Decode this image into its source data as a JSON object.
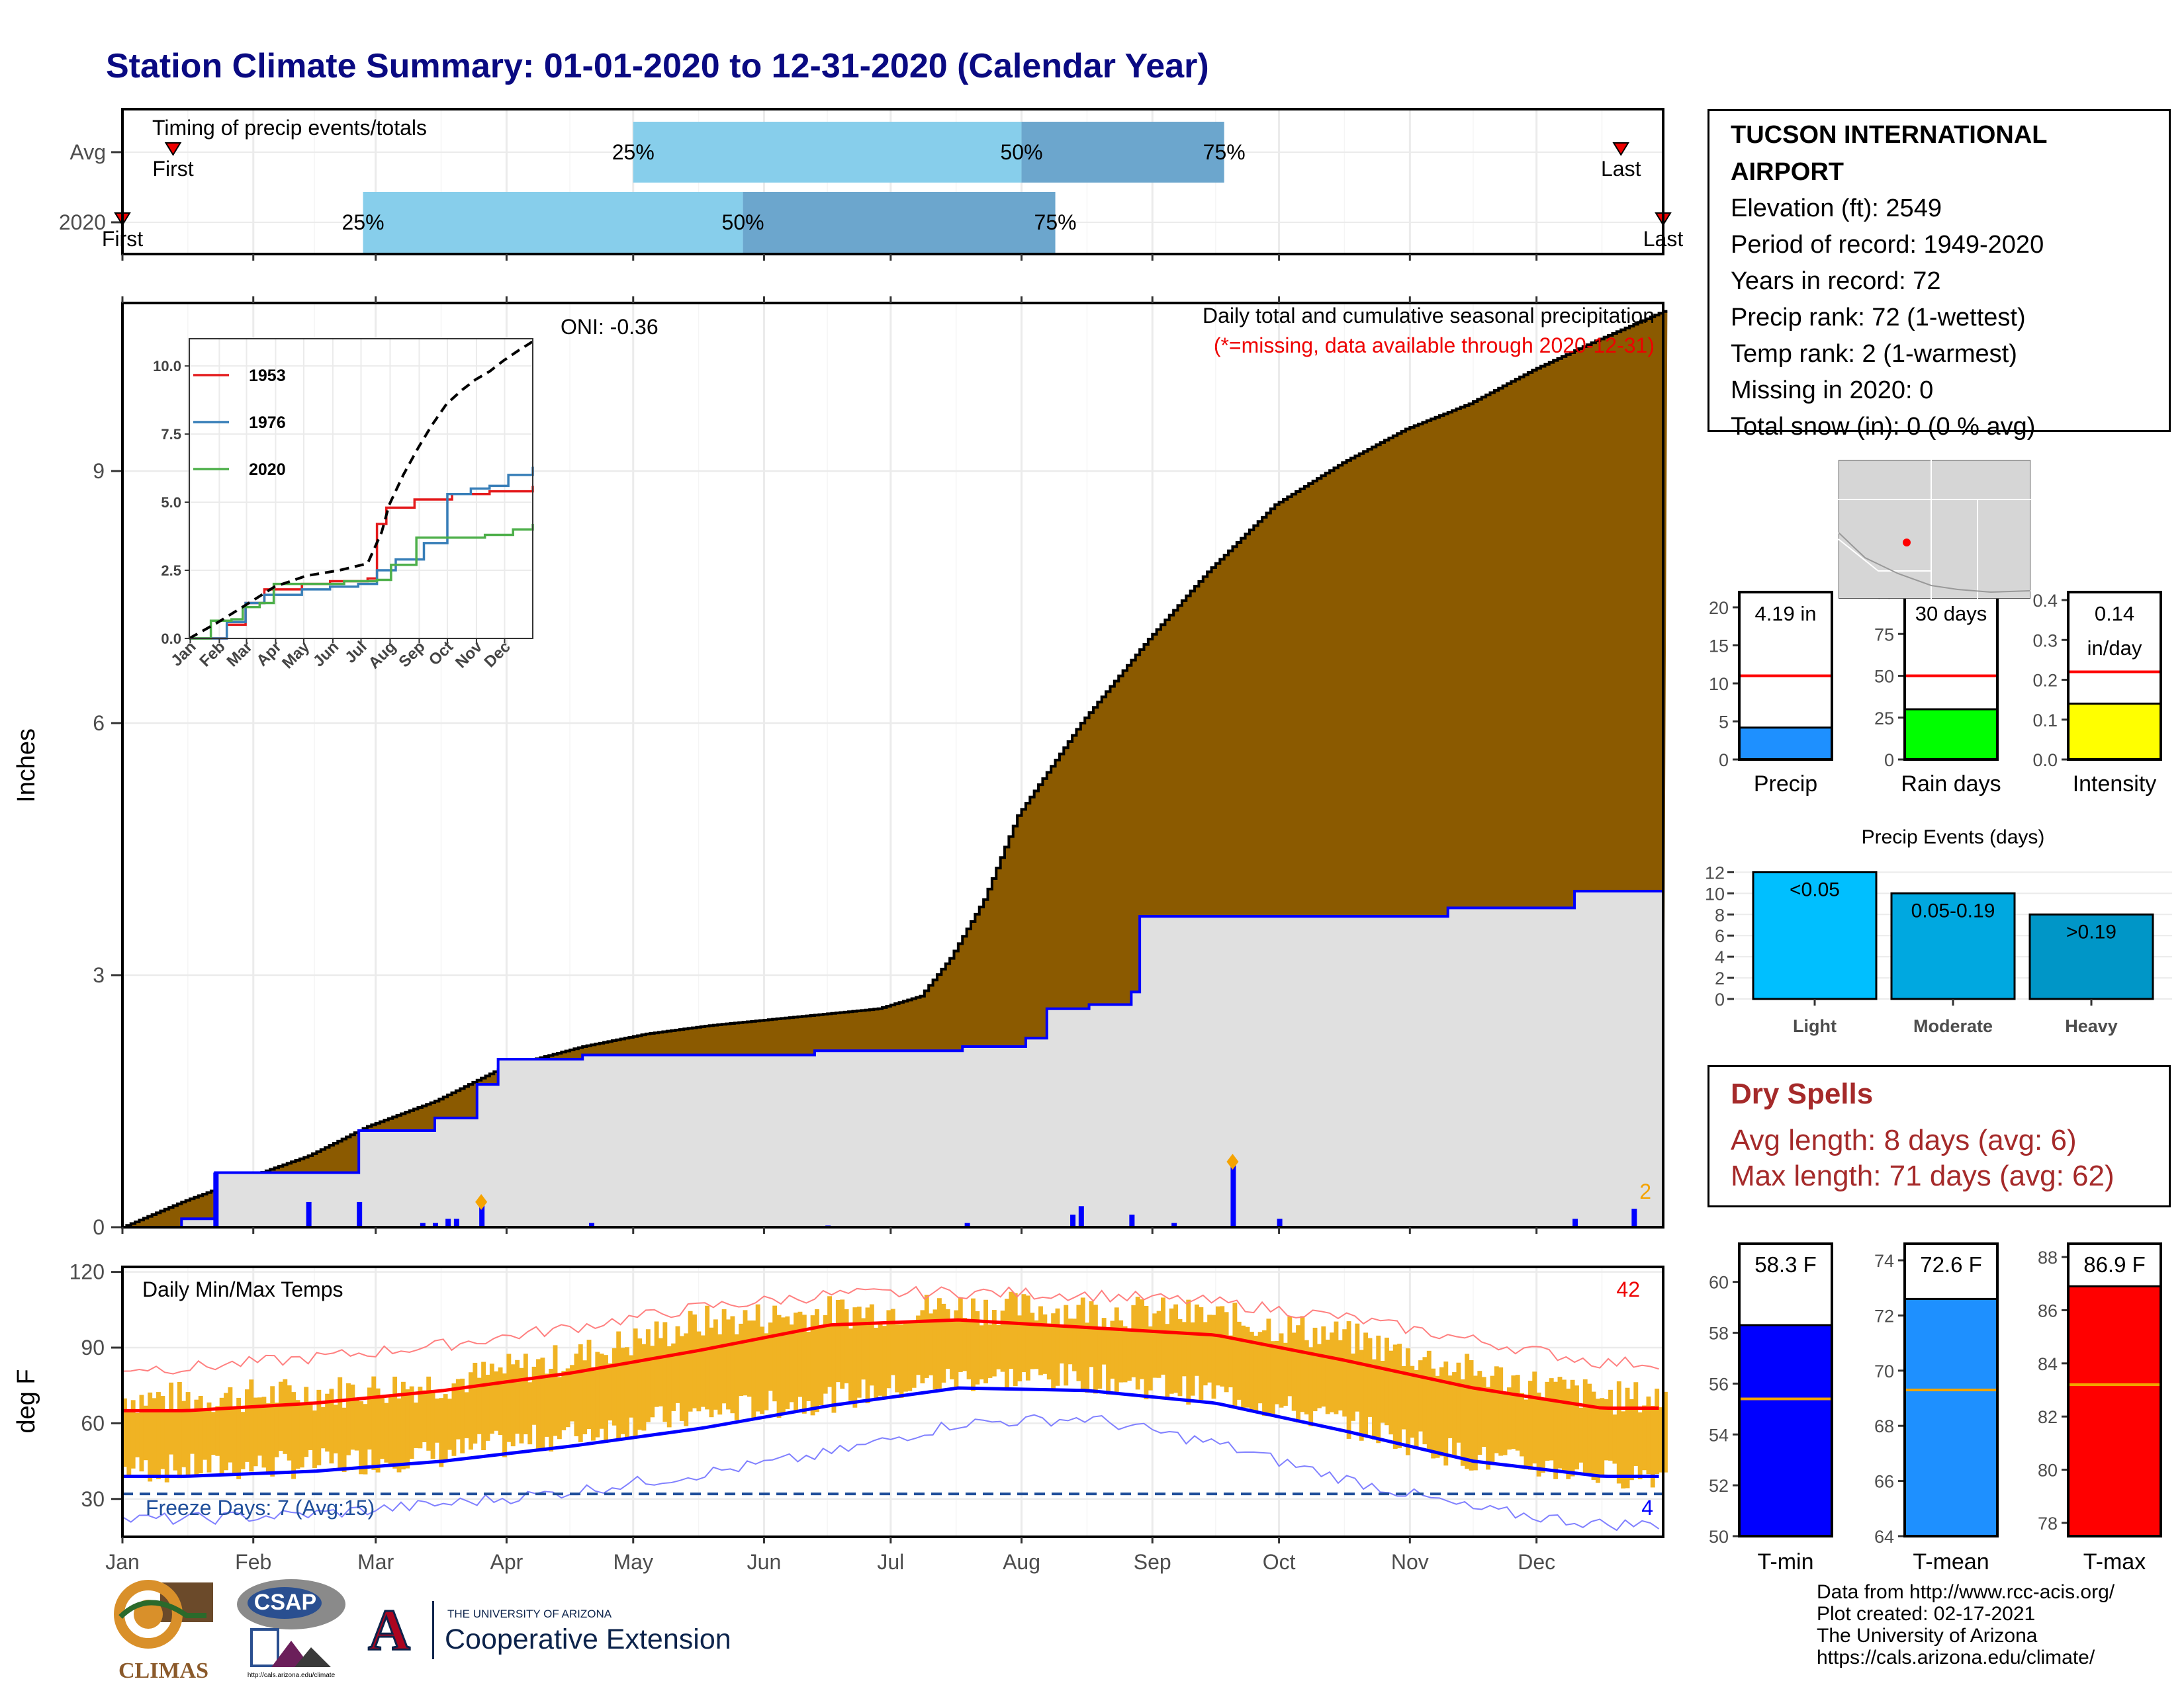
{
  "header": {
    "title": "Station Climate Summary: 01-01-2020 to 12-31-2020 (Calendar Year)"
  },
  "station": {
    "name": "TUCSON INTERNATIONAL AIRPORT",
    "lines": [
      "Elevation (ft): 2549",
      "Period of record: 1949-2020",
      "Years in record: 72",
      "Precip rank: 72 (1-wettest)",
      "Temp rank: 2 (1-warmest)",
      "Missing in 2020: 0",
      "Total snow (in): 0 (0 % avg)"
    ]
  },
  "dry_spells": {
    "title": "Dry Spells",
    "avg": "Avg length: 8 days (avg: 6)",
    "max": "Max length: 71 days (avg: 62)"
  },
  "credits": [
    "Data from http://www.rcc-acis.org/",
    "Plot created: 02-17-2021",
    "The University of Arizona",
    "https://cals.arizona.edu/climate/"
  ],
  "logos": {
    "climas": "CLIMAS",
    "csap": "CSAP",
    "csap_url": "http://cals.arizona.edu/climate",
    "ua_small": "THE UNIVERSITY OF ARIZONA",
    "ua_big": "Cooperative Extension",
    "ua_mark": "A"
  },
  "colors": {
    "precip_fill": "#8B5A00",
    "avg_fill": "#E0E0E0",
    "avg_line": "#0000FF",
    "quart_light": "#87CEEB",
    "quart_dark": "#6CA6CD",
    "temp_bar": "#F0B323",
    "tmax": "#FF0000",
    "tmin": "#0000FF",
    "freeze": "#1F4E9A"
  },
  "chart_data": [
    {
      "id": "timing",
      "type": "timing",
      "title": "Timing of precip events/totals",
      "rows": [
        {
          "label": "Avg",
          "first": "Jan 13",
          "last": "Dec 21",
          "q25": "May 1",
          "q50": "Aug 1",
          "q75": "Sep 18",
          "first_label": "First",
          "last_label": "Last"
        },
        {
          "label": "2020",
          "first": "Jan 1",
          "last": "Dec 31",
          "q25": "Feb 27",
          "q50": "May 27",
          "q75": "Aug 9",
          "first_label": "First",
          "last_label": "Last"
        }
      ],
      "quartile_labels": [
        "25%",
        "50%",
        "75%"
      ]
    },
    {
      "id": "precip",
      "type": "area",
      "ylabel": "Inches",
      "ylim": [
        0,
        11
      ],
      "yticks": [
        0,
        3,
        6,
        9
      ],
      "months": [
        "Jan",
        "Feb",
        "Mar",
        "Apr",
        "May",
        "Jun",
        "Jul",
        "Aug",
        "Sep",
        "Oct",
        "Nov",
        "Dec"
      ],
      "annotation_title": "Daily total and cumulative seasonal precipitation",
      "annotation_missing": "(*=missing, data available through 2020-12-31)",
      "oni": "ONI: -0.36",
      "count_label": "2",
      "cumulative_2020": [
        [
          1,
          0
        ],
        [
          15,
          0.3
        ],
        [
          31,
          0.6
        ],
        [
          45,
          0.85
        ],
        [
          59,
          1.2
        ],
        [
          75,
          1.5
        ],
        [
          91,
          1.9
        ],
        [
          110,
          2.15
        ],
        [
          125,
          2.3
        ],
        [
          140,
          2.4
        ],
        [
          160,
          2.5
        ],
        [
          180,
          2.6
        ],
        [
          190,
          2.75
        ],
        [
          197,
          3.2
        ],
        [
          205,
          3.9
        ],
        [
          213,
          4.9
        ],
        [
          228,
          6.0
        ],
        [
          244,
          7.0
        ],
        [
          258,
          7.8
        ],
        [
          274,
          8.6
        ],
        [
          290,
          9.1
        ],
        [
          305,
          9.5
        ],
        [
          320,
          9.8
        ],
        [
          335,
          10.2
        ],
        [
          350,
          10.55
        ],
        [
          366,
          10.9
        ]
      ],
      "cumulative_avg": [
        [
          1,
          0
        ],
        [
          15,
          0.1
        ],
        [
          23,
          0.65
        ],
        [
          45,
          0.65
        ],
        [
          57,
          1.15
        ],
        [
          75,
          1.3
        ],
        [
          85,
          1.7
        ],
        [
          90,
          2.0
        ],
        [
          110,
          2.05
        ],
        [
          165,
          2.1
        ],
        [
          200,
          2.15
        ],
        [
          215,
          2.25
        ],
        [
          220,
          2.6
        ],
        [
          230,
          2.65
        ],
        [
          240,
          2.8
        ],
        [
          242,
          3.7
        ],
        [
          315,
          3.8
        ],
        [
          345,
          4.0
        ],
        [
          366,
          4.2
        ]
      ],
      "daily_precip": [
        [
          23,
          0.65
        ],
        [
          45,
          0.3
        ],
        [
          57,
          0.3
        ],
        [
          72,
          0.05
        ],
        [
          75,
          0.05
        ],
        [
          78,
          0.1
        ],
        [
          80,
          0.1
        ],
        [
          86,
          0.3
        ],
        [
          112,
          0.05
        ],
        [
          168,
          0.02
        ],
        [
          201,
          0.05
        ],
        [
          226,
          0.15
        ],
        [
          228,
          0.25
        ],
        [
          240,
          0.15
        ],
        [
          250,
          0.05
        ],
        [
          264,
          0.78
        ],
        [
          275,
          0.1
        ],
        [
          345,
          0.1
        ],
        [
          359,
          0.22
        ]
      ],
      "record_days": [
        [
          86,
          0.3
        ],
        [
          264,
          0.78
        ]
      ],
      "inset": {
        "ylim": [
          0,
          11
        ],
        "yticks": [
          "0.0",
          "2.5",
          "5.0",
          "7.5",
          "10.0"
        ],
        "months": [
          "Jan",
          "Feb",
          "Mar",
          "Apr",
          "May",
          "Jun",
          "Jul",
          "Aug",
          "Sep",
          "Oct",
          "Nov",
          "Dec"
        ],
        "series": [
          {
            "name": "1953",
            "color": "#E41A1C",
            "values": [
              [
                0,
                0
              ],
              [
                20,
                0
              ],
              [
                40,
                0.5
              ],
              [
                60,
                1.3
              ],
              [
                80,
                1.8
              ],
              [
                120,
                2.0
              ],
              [
                150,
                2.1
              ],
              [
                180,
                2.1
              ],
              [
                190,
                2.2
              ],
              [
                200,
                4.2
              ],
              [
                210,
                4.8
              ],
              [
                240,
                5.1
              ],
              [
                280,
                5.3
              ],
              [
                320,
                5.4
              ],
              [
                366,
                5.6
              ]
            ]
          },
          {
            "name": "1976",
            "color": "#377EB8",
            "values": [
              [
                0,
                0
              ],
              [
                20,
                0
              ],
              [
                40,
                0.6
              ],
              [
                60,
                1.3
              ],
              [
                80,
                1.6
              ],
              [
                120,
                1.8
              ],
              [
                150,
                1.9
              ],
              [
                180,
                2.0
              ],
              [
                200,
                2.5
              ],
              [
                220,
                2.9
              ],
              [
                250,
                3.5
              ],
              [
                275,
                5.3
              ],
              [
                300,
                5.5
              ],
              [
                320,
                5.6
              ],
              [
                340,
                6.0
              ],
              [
                366,
                6.3
              ]
            ]
          },
          {
            "name": "2020",
            "color": "#4DAF4A",
            "values": [
              [
                0,
                0
              ],
              [
                20,
                0
              ],
              [
                23,
                0.65
              ],
              [
                45,
                0.7
              ],
              [
                57,
                1.15
              ],
              [
                75,
                1.3
              ],
              [
                90,
                2.0
              ],
              [
                165,
                2.1
              ],
              [
                200,
                2.15
              ],
              [
                215,
                2.7
              ],
              [
                242,
                3.7
              ],
              [
                315,
                3.8
              ],
              [
                345,
                4.0
              ],
              [
                366,
                4.2
              ]
            ]
          },
          {
            "name": "avg",
            "color": "#000000",
            "dashed": true,
            "values": [
              [
                0,
                0
              ],
              [
                31,
                0.6
              ],
              [
                59,
                1.2
              ],
              [
                91,
                1.9
              ],
              [
                125,
                2.3
              ],
              [
                160,
                2.5
              ],
              [
                190,
                2.75
              ],
              [
                205,
                3.9
              ],
              [
                213,
                4.9
              ],
              [
                228,
                6.0
              ],
              [
                244,
                7.0
              ],
              [
                258,
                7.8
              ],
              [
                274,
                8.6
              ],
              [
                290,
                9.1
              ],
              [
                305,
                9.5
              ],
              [
                320,
                9.8
              ],
              [
                335,
                10.2
              ],
              [
                350,
                10.55
              ],
              [
                366,
                10.9
              ]
            ]
          }
        ]
      }
    },
    {
      "id": "temps",
      "type": "bar",
      "title": "Daily Min/Max Temps",
      "ylabel": "deg F",
      "ylim": [
        15,
        122
      ],
      "yticks": [
        30,
        60,
        90,
        120
      ],
      "months": [
        "Jan",
        "Feb",
        "Mar",
        "Apr",
        "May",
        "Jun",
        "Jul",
        "Aug",
        "Sep",
        "Oct",
        "Nov",
        "Dec"
      ],
      "freeze_line": 32,
      "freeze_label": "Freeze Days: 7 (Avg:15)",
      "record_high_count": "42",
      "record_low_count": "4",
      "avg_max_monthly": [
        65,
        68,
        73,
        80,
        89,
        99,
        101,
        98,
        95,
        85,
        74,
        66
      ],
      "avg_min_monthly": [
        39,
        41,
        45,
        51,
        58,
        67,
        74,
        73,
        68,
        57,
        45,
        39
      ],
      "record_max_monthly": [
        82,
        86,
        91,
        98,
        106,
        111,
        112,
        111,
        108,
        102,
        93,
        84
      ],
      "record_min_monthly": [
        22,
        24,
        28,
        33,
        40,
        48,
        60,
        62,
        52,
        38,
        26,
        20
      ],
      "obs_max_monthly": [
        70,
        72,
        76,
        86,
        100,
        104,
        106,
        105,
        102,
        94,
        80,
        70
      ],
      "obs_min_monthly": [
        42,
        44,
        48,
        56,
        64,
        70,
        78,
        78,
        72,
        60,
        46,
        40
      ]
    },
    {
      "id": "precip_gauges",
      "type": "bar",
      "gauges": [
        {
          "name": "Precip",
          "value": 4.19,
          "avg": 11,
          "ylim": [
            0,
            22
          ],
          "yticks": [
            0,
            5,
            10,
            15,
            20
          ],
          "label": "4.19 in",
          "color": "#1E90FF"
        },
        {
          "name": "Rain days",
          "value": 30,
          "avg": 50,
          "ylim": [
            0,
            100
          ],
          "yticks": [
            0,
            25,
            50,
            75,
            100
          ],
          "label": "30 days",
          "color": "#00FF00"
        },
        {
          "name": "Intensity",
          "value": 0.14,
          "avg": 0.22,
          "ylim": [
            0,
            0.42
          ],
          "yticks": [
            "0.0",
            "0.1",
            "0.2",
            "0.3",
            "0.4"
          ],
          "label": "0.14\nin/day",
          "color": "#FFFF00"
        }
      ]
    },
    {
      "id": "precip_events",
      "type": "bar",
      "title": "Precip Events (days)",
      "categories": [
        "Light",
        "Moderate",
        "Heavy"
      ],
      "values": [
        12,
        10,
        8
      ],
      "bar_labels": [
        "<0.05",
        "0.05-0.19",
        ">0.19"
      ],
      "ylim": [
        0,
        12.4
      ],
      "yticks": [
        0,
        2,
        4,
        6,
        8,
        10,
        12
      ],
      "colors": [
        "#00BFFF",
        "#00A8E0",
        "#0096C7"
      ]
    },
    {
      "id": "temp_gauges",
      "type": "bar",
      "gauges": [
        {
          "name": "T-min",
          "value": 58.3,
          "avg": 55.4,
          "ylim": [
            50,
            61.5
          ],
          "yticks": [
            50,
            52,
            54,
            56,
            58,
            60
          ],
          "label": "58.3 F",
          "color": "#0000FF"
        },
        {
          "name": "T-mean",
          "value": 72.6,
          "avg": 69.3,
          "ylim": [
            64,
            74.6
          ],
          "yticks": [
            64,
            66,
            68,
            70,
            72,
            74
          ],
          "label": "72.6 F",
          "color": "#1E90FF"
        },
        {
          "name": "T-max",
          "value": 86.9,
          "avg": 83.2,
          "ylim": [
            77.5,
            88.5
          ],
          "yticks": [
            78,
            80,
            82,
            84,
            86,
            88
          ],
          "label": "86.9 F",
          "color": "#FF0000"
        }
      ]
    }
  ]
}
